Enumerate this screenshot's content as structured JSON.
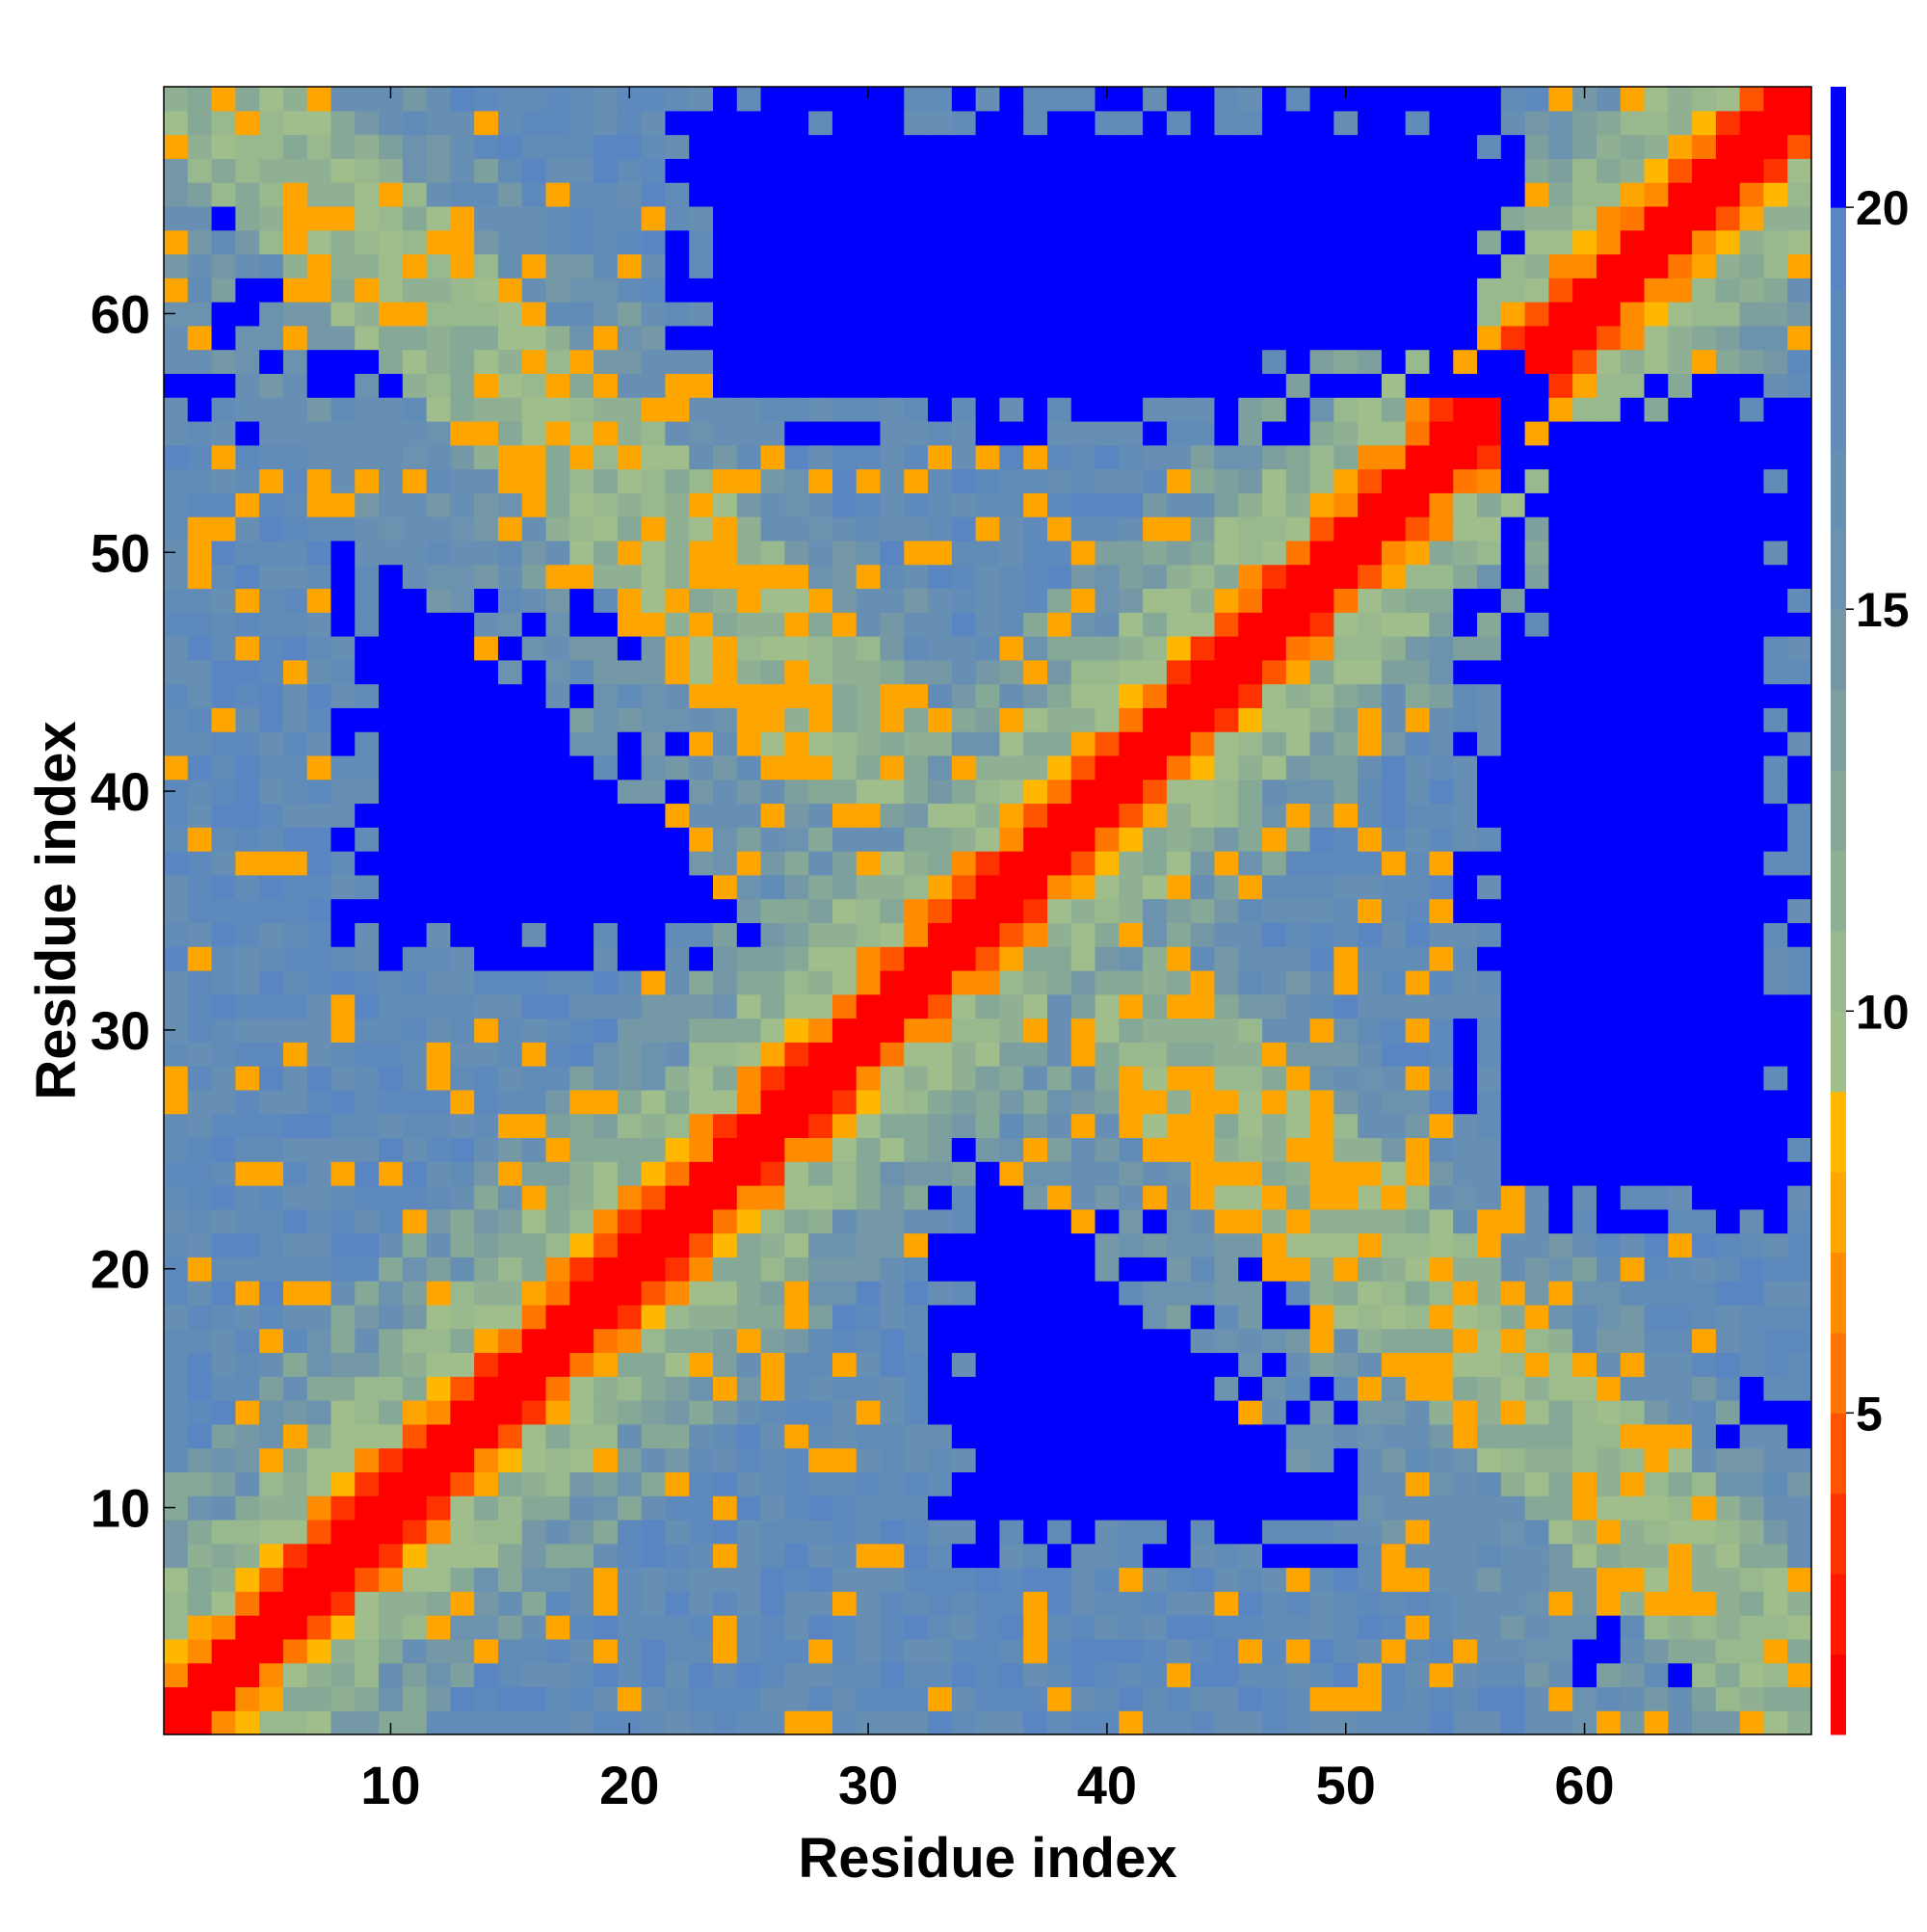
{
  "chart_data": {
    "type": "heatmap",
    "title": "",
    "xlabel": "Residue index",
    "ylabel": "Residue index",
    "n_residues": 69,
    "x_ticks": [
      10,
      20,
      30,
      40,
      50,
      60
    ],
    "y_ticks": [
      10,
      20,
      30,
      40,
      50,
      60
    ],
    "colorbar": {
      "ticks": [
        5,
        10,
        15,
        20
      ],
      "vmin": 1,
      "vmax": 21.5,
      "levels": [
        {
          "from": 1,
          "to": 2,
          "color": "#ff0000"
        },
        {
          "from": 2,
          "to": 3,
          "color": "#ff1a00"
        },
        {
          "from": 3,
          "to": 4,
          "color": "#ff3300"
        },
        {
          "from": 4,
          "to": 5,
          "color": "#ff5500"
        },
        {
          "from": 5,
          "to": 6,
          "color": "#ff7700"
        },
        {
          "from": 6,
          "to": 7,
          "color": "#ff8c00"
        },
        {
          "from": 7,
          "to": 8,
          "color": "#ffa500"
        },
        {
          "from": 8,
          "to": 9,
          "color": "#ffb700"
        },
        {
          "from": 9,
          "to": 10,
          "color": "#9fbe8c"
        },
        {
          "from": 10,
          "to": 11,
          "color": "#98b88e"
        },
        {
          "from": 11,
          "to": 12,
          "color": "#8fb092"
        },
        {
          "from": 12,
          "to": 13,
          "color": "#86a897"
        },
        {
          "from": 13,
          "to": 14,
          "color": "#7d9f9e"
        },
        {
          "from": 14,
          "to": 15,
          "color": "#7498a6"
        },
        {
          "from": 15,
          "to": 16,
          "color": "#6b92ae"
        },
        {
          "from": 16,
          "to": 17,
          "color": "#668fb3"
        },
        {
          "from": 17,
          "to": 18,
          "color": "#628cb8"
        },
        {
          "from": 18,
          "to": 19,
          "color": "#5d89bd"
        },
        {
          "from": 19,
          "to": 20,
          "color": "#5986c2"
        },
        {
          "from": 20,
          "to": 21.5,
          "color": "#0000ff"
        }
      ]
    },
    "structure": {
      "description_free": true,
      "hairpins": [
        {
          "start": 2,
          "end": 20
        },
        {
          "start": 25,
          "end": 50
        },
        {
          "start": 45,
          "end": 68
        }
      ],
      "sheet_contacts": [
        {
          "a_start": 5,
          "a_end": 20,
          "b_start": 45,
          "b_end": 62,
          "parallel": false
        },
        {
          "a_start": 5,
          "a_end": 25,
          "b_start": 50,
          "b_end": 60,
          "parallel": false
        }
      ],
      "far_regions": [
        {
          "x": [
            8,
            25
          ],
          "y": [
            33,
            50
          ]
        },
        {
          "x": [
            33,
            50
          ],
          "y": [
            8,
            25
          ]
        },
        {
          "x": [
            55,
            69
          ],
          "y": [
            32,
            57
          ]
        },
        {
          "x": [
            32,
            57
          ],
          "y": [
            55,
            69
          ]
        },
        {
          "x": [
            22,
            45
          ],
          "y": [
            55,
            69
          ]
        },
        {
          "x": [
            55,
            69
          ],
          "y": [
            22,
            45
          ]
        }
      ],
      "colors": {
        "blue": "#0000ff",
        "red": "#ff0000"
      }
    }
  }
}
